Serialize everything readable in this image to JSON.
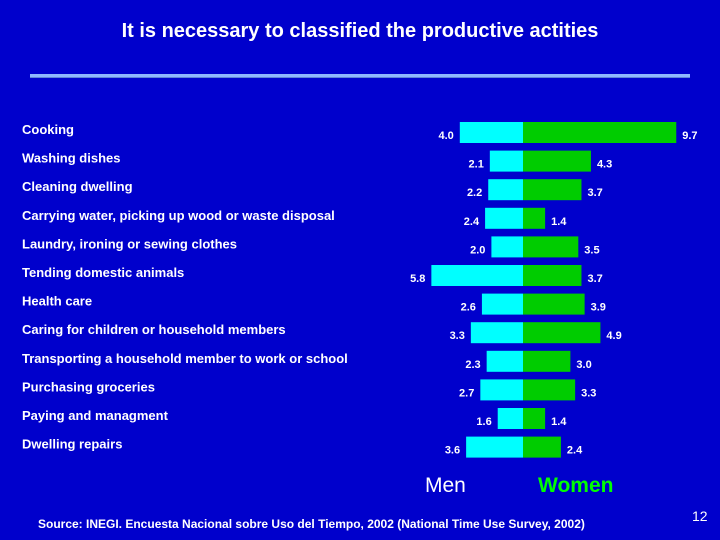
{
  "slide": {
    "title": "It is necessary to classified the productive actities",
    "source": "Source: INEGI. Encuesta Nacional sobre Uso del Tiempo, 2002 (National Time Use Survey, 2002)",
    "page_number": "12"
  },
  "colors": {
    "background": "#0000cc",
    "men": "#00ffff",
    "women": "#00cc00",
    "rule": "#8fb8ff"
  },
  "chart_data": {
    "type": "bar",
    "orientation": "horizontal-diverging",
    "categories": [
      "Cooking",
      "Washing dishes",
      "Cleaning dwelling",
      "Carrying water, picking up wood or waste disposal",
      "Laundry, ironing or sewing clothes",
      "Tending domestic animals",
      "Health care",
      "Caring for children or household members",
      "Transporting a household member to work or school",
      "Purchasing groceries",
      "Paying and managment",
      "Dwelling repairs"
    ],
    "series": [
      {
        "name": "Men",
        "values": [
          4.0,
          2.1,
          2.2,
          2.4,
          2.0,
          5.8,
          2.6,
          3.3,
          2.3,
          2.7,
          1.6,
          3.6
        ]
      },
      {
        "name": "Women",
        "values": [
          9.7,
          4.3,
          3.7,
          1.4,
          3.5,
          3.7,
          3.9,
          4.9,
          3.0,
          3.3,
          1.4,
          2.4
        ]
      }
    ],
    "value_labels": {
      "men": [
        "4.0",
        "2.1",
        "2.2",
        "2.4",
        "2.0",
        "5.8",
        "2.6",
        "3.3",
        "2.3",
        "2.7",
        "1.6",
        "3.6"
      ],
      "women": [
        "9.7",
        "4.3",
        "3.7",
        "1.4",
        "3.5",
        "3.7",
        "3.9",
        "4.9",
        "3.0",
        "3.3",
        "1.4",
        "2.4"
      ]
    },
    "legend": [
      "Men",
      "Women"
    ],
    "grid": false
  }
}
